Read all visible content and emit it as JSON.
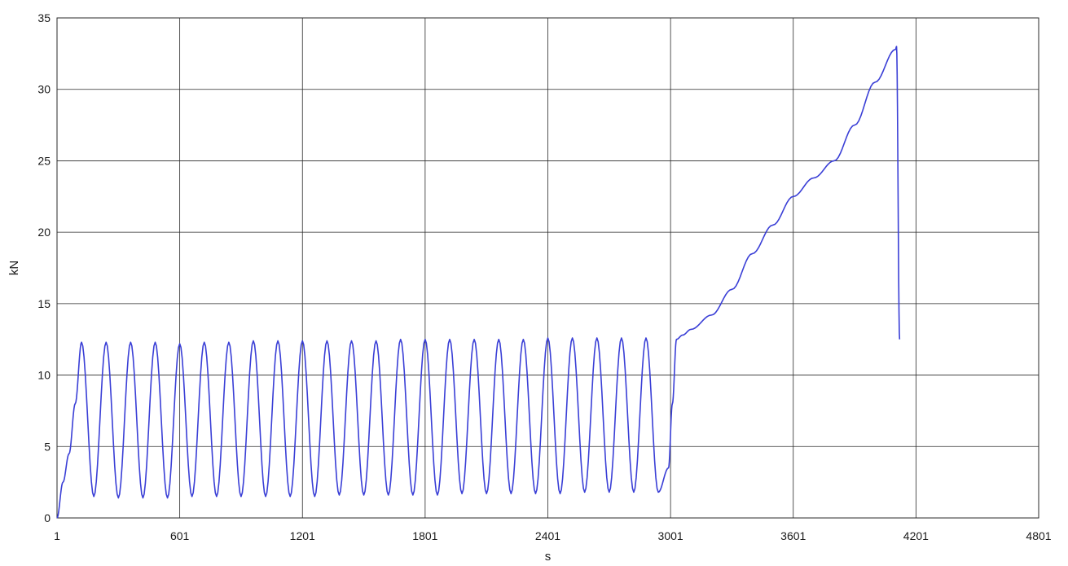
{
  "chart_data": {
    "type": "line",
    "xlabel": "s",
    "ylabel": "kN",
    "xlim": [
      1,
      4801
    ],
    "ylim": [
      0,
      35
    ],
    "x_ticks": [
      1,
      601,
      1201,
      1801,
      2401,
      3001,
      3601,
      4201,
      4801
    ],
    "y_ticks": [
      0,
      5,
      10,
      15,
      20,
      25,
      30,
      35
    ],
    "grid": true,
    "legend": "none",
    "series_color": "#3a3fd6",
    "cyclic_phase": {
      "x_range": [
        1,
        3001
      ],
      "cycle_count": 25,
      "peak_kN": 12.3,
      "trough_kN": 1.5
    },
    "series": [
      {
        "values": [
          [
            1,
            0.0
          ],
          [
            30,
            2.5
          ],
          [
            60,
            4.5
          ],
          [
            90,
            8.0
          ],
          [
            121,
            12.3
          ],
          [
            181,
            1.5
          ],
          [
            241,
            12.3
          ],
          [
            301,
            1.4
          ],
          [
            361,
            12.3
          ],
          [
            421,
            1.4
          ],
          [
            481,
            12.3
          ],
          [
            541,
            1.4
          ],
          [
            601,
            12.2
          ],
          [
            661,
            1.5
          ],
          [
            721,
            12.3
          ],
          [
            781,
            1.5
          ],
          [
            841,
            12.3
          ],
          [
            901,
            1.5
          ],
          [
            961,
            12.4
          ],
          [
            1021,
            1.5
          ],
          [
            1081,
            12.4
          ],
          [
            1141,
            1.5
          ],
          [
            1201,
            12.4
          ],
          [
            1261,
            1.5
          ],
          [
            1321,
            12.4
          ],
          [
            1381,
            1.6
          ],
          [
            1441,
            12.4
          ],
          [
            1501,
            1.6
          ],
          [
            1561,
            12.4
          ],
          [
            1621,
            1.6
          ],
          [
            1681,
            12.5
          ],
          [
            1741,
            1.6
          ],
          [
            1801,
            12.5
          ],
          [
            1861,
            1.6
          ],
          [
            1921,
            12.5
          ],
          [
            1981,
            1.7
          ],
          [
            2041,
            12.5
          ],
          [
            2101,
            1.7
          ],
          [
            2161,
            12.5
          ],
          [
            2221,
            1.7
          ],
          [
            2281,
            12.5
          ],
          [
            2341,
            1.7
          ],
          [
            2401,
            12.6
          ],
          [
            2461,
            1.7
          ],
          [
            2521,
            12.6
          ],
          [
            2581,
            1.8
          ],
          [
            2641,
            12.6
          ],
          [
            2701,
            1.8
          ],
          [
            2761,
            12.6
          ],
          [
            2821,
            1.8
          ],
          [
            2881,
            12.6
          ],
          [
            2941,
            1.8
          ],
          [
            2991,
            3.5
          ],
          [
            3010,
            8.0
          ],
          [
            3030,
            12.5
          ],
          [
            3060,
            12.8
          ],
          [
            3101,
            13.2
          ],
          [
            3201,
            14.2
          ],
          [
            3301,
            16.0
          ],
          [
            3401,
            18.5
          ],
          [
            3501,
            20.5
          ],
          [
            3601,
            22.5
          ],
          [
            3701,
            23.8
          ],
          [
            3801,
            25.0
          ],
          [
            3901,
            27.5
          ],
          [
            4001,
            30.5
          ],
          [
            4101,
            32.8
          ],
          [
            4106,
            33.0
          ],
          [
            4121,
            12.5
          ]
        ]
      }
    ]
  }
}
